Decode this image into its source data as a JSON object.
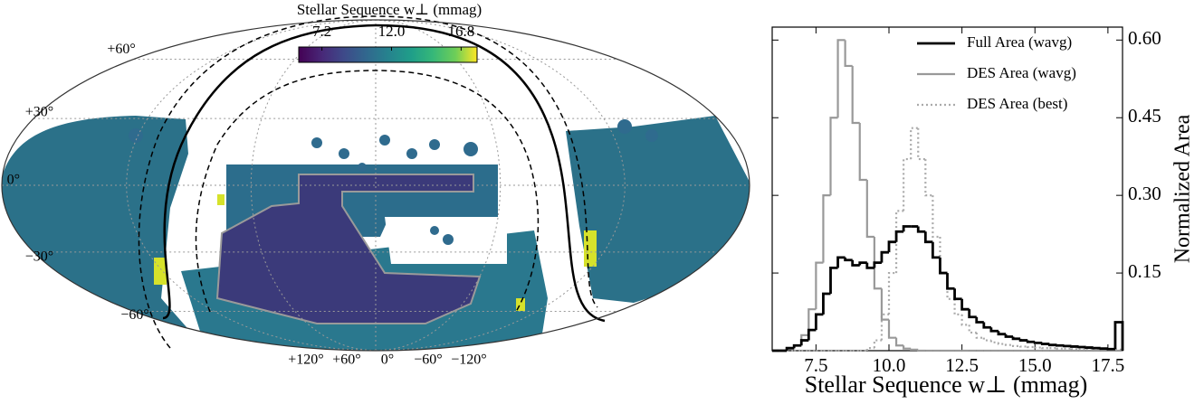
{
  "chart_data": [
    {
      "type": "map",
      "projection": "mollweide",
      "colorbar_label": "Stellar Sequence w⊥ (mmag)",
      "colormap": "viridis",
      "clim": [
        5.6,
        17.9
      ],
      "cticks": [
        7.2,
        {
          "value": 12,
          "label": "12.0"
        },
        16.8
      ],
      "lat_ticks": [
        {
          "value": 60,
          "label": "+60°"
        },
        {
          "value": 30,
          "label": "+30°"
        },
        {
          "value": 0,
          "label": "0°"
        },
        {
          "value": -30,
          "label": "−30°"
        },
        {
          "value": -60,
          "label": "−60°"
        }
      ],
      "lon_ticks": [
        {
          "value": 120,
          "label": "+120°"
        },
        {
          "value": 60,
          "label": "+60°"
        },
        {
          "value": 0,
          "label": "0°"
        },
        {
          "value": -60,
          "label": "−60°"
        },
        {
          "value": -120,
          "label": "−120°"
        }
      ],
      "grid": true
    },
    {
      "type": "histogram",
      "xlabel": "Stellar Sequence w⊥ (mmag)",
      "ylabel": "Normalized Area",
      "bins": [
        6,
        6.25,
        6.5,
        6.75,
        7,
        7.25,
        7.5,
        7.75,
        8,
        8.25,
        8.5,
        8.75,
        9,
        9.25,
        9.5,
        9.75,
        10,
        10.25,
        10.5,
        10.75,
        11,
        11.25,
        11.5,
        11.75,
        12,
        12.25,
        12.5,
        12.75,
        13,
        13.25,
        13.5,
        13.75,
        14,
        14.25,
        14.5,
        14.75,
        15,
        15.25,
        15.5,
        15.75,
        16,
        16.25,
        16.5,
        16.75,
        17,
        17.25,
        17.5,
        17.75,
        18
      ],
      "series": [
        {
          "name": "Full Area (wavg)",
          "color": "#000000",
          "linestyle": "solid",
          "values": [
            0,
            0,
            0.005,
            0.01,
            0.02,
            0.04,
            0.07,
            0.11,
            0.16,
            0.18,
            0.175,
            0.165,
            0.17,
            0.16,
            0.17,
            0.19,
            0.21,
            0.23,
            0.24,
            0.24,
            0.23,
            0.21,
            0.18,
            0.15,
            0.12,
            0.1,
            0.08,
            0.065,
            0.055,
            0.045,
            0.038,
            0.032,
            0.027,
            0.023,
            0.02,
            0.017,
            0.015,
            0.013,
            0.011,
            0.01,
            0.009,
            0.008,
            0.007,
            0.006,
            0.005,
            0.004,
            0.003,
            0.055
          ]
        },
        {
          "name": "DES Area (wavg)",
          "color": "#999999",
          "linestyle": "solid",
          "values": [
            0,
            0,
            0.003,
            0.01,
            0.03,
            0.08,
            0.17,
            0.3,
            0.45,
            0.6,
            0.55,
            0.44,
            0.33,
            0.22,
            0.12,
            0.06,
            0.025,
            0.01,
            0.004,
            0.002,
            0,
            0,
            0,
            0,
            0,
            0,
            0,
            0,
            0,
            0,
            0,
            0,
            0,
            0,
            0,
            0,
            0,
            0,
            0,
            0,
            0,
            0,
            0,
            0,
            0,
            0,
            0,
            0
          ]
        },
        {
          "name": "DES Area (best)",
          "color": "#aaaaaa",
          "linestyle": "dotted",
          "values": [
            0,
            0,
            0,
            0,
            0,
            0,
            0,
            0,
            0,
            0,
            0,
            0,
            0,
            0.005,
            0.02,
            0.07,
            0.15,
            0.27,
            0.37,
            0.43,
            0.37,
            0.3,
            0.22,
            0.15,
            0.1,
            0.07,
            0.05,
            0.035,
            0.025,
            0.02,
            0.016,
            0.013,
            0.011,
            0.009,
            0.008,
            0.007,
            0.006,
            0.005,
            0.005,
            0.004,
            0.004,
            0.003,
            0.003,
            0.003,
            0.002,
            0.002,
            0.002,
            0.002
          ]
        }
      ],
      "xlim": [
        6,
        18
      ],
      "ylim": [
        0,
        0.625
      ],
      "xticks": [
        7.5,
        {
          "value": 10,
          "label": "10.0"
        },
        12.5,
        {
          "value": 15,
          "label": "15.0"
        },
        17.5
      ],
      "yticks": [
        0.15,
        {
          "value": 0.3,
          "label": "0.30"
        },
        0.45,
        {
          "value": 0.6,
          "label": "0.60"
        }
      ],
      "legend": "upper right",
      "yaxis_side": "right"
    }
  ]
}
